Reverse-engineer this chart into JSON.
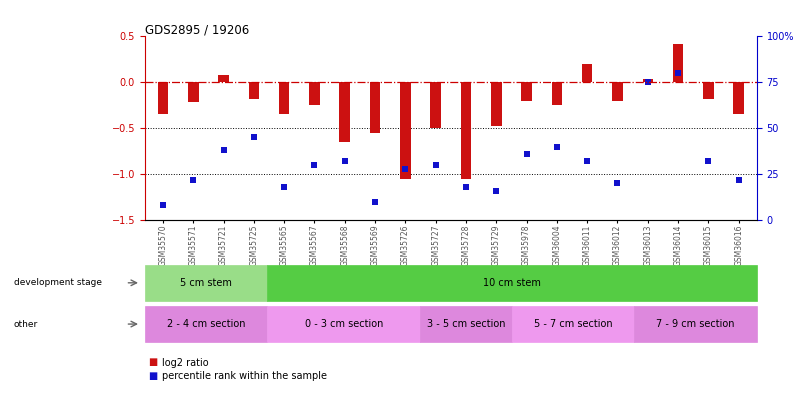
{
  "title": "GDS2895 / 19206",
  "samples": [
    "GSM35570",
    "GSM35571",
    "GSM35721",
    "GSM35725",
    "GSM35565",
    "GSM35567",
    "GSM35568",
    "GSM35569",
    "GSM35726",
    "GSM35727",
    "GSM35728",
    "GSM35729",
    "GSM35978",
    "GSM36004",
    "GSM36011",
    "GSM36012",
    "GSM36013",
    "GSM36014",
    "GSM36015",
    "GSM36016"
  ],
  "log2_ratio": [
    -0.35,
    -0.22,
    0.08,
    -0.18,
    -0.35,
    -0.25,
    -0.65,
    -0.55,
    -1.05,
    -0.5,
    -1.05,
    -0.48,
    -0.2,
    -0.25,
    0.2,
    -0.2,
    0.04,
    0.42,
    -0.18,
    -0.35
  ],
  "percentile": [
    8,
    22,
    38,
    45,
    18,
    30,
    32,
    10,
    28,
    30,
    18,
    16,
    36,
    40,
    32,
    20,
    75,
    80,
    32,
    22
  ],
  "ylim_left": [
    -1.5,
    0.5
  ],
  "ylim_right": [
    0,
    100
  ],
  "yticks_left": [
    -1.5,
    -1.0,
    -0.5,
    0.0,
    0.5
  ],
  "yticks_right": [
    0,
    25,
    50,
    75,
    100
  ],
  "dev_stage_groups": [
    {
      "label": "5 cm stem",
      "start": 0,
      "end": 3,
      "color": "#99dd88"
    },
    {
      "label": "10 cm stem",
      "start": 4,
      "end": 19,
      "color": "#55cc44"
    }
  ],
  "other_groups": [
    {
      "label": "2 - 4 cm section",
      "start": 0,
      "end": 3,
      "color": "#dd88dd"
    },
    {
      "label": "0 - 3 cm section",
      "start": 4,
      "end": 8,
      "color": "#ee99ee"
    },
    {
      "label": "3 - 5 cm section",
      "start": 9,
      "end": 11,
      "color": "#dd88dd"
    },
    {
      "label": "5 - 7 cm section",
      "start": 12,
      "end": 15,
      "color": "#ee99ee"
    },
    {
      "label": "7 - 9 cm section",
      "start": 16,
      "end": 19,
      "color": "#dd88dd"
    }
  ],
  "bar_color": "#cc1111",
  "marker_color": "#1111cc",
  "hline_color": "#cc0000",
  "dotted_line_color": "#000000",
  "bg_color": "#ffffff",
  "tick_label_color": "#555555",
  "right_axis_color": "#0000cc",
  "left_axis_color": "#cc0000"
}
